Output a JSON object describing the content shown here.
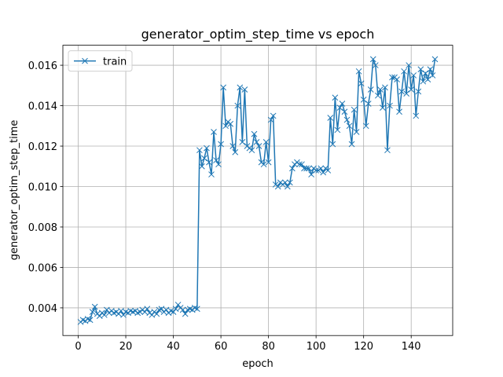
{
  "chart_data": {
    "type": "line",
    "title": "generator_optim_step_time vs epoch",
    "xlabel": "epoch",
    "ylabel": "generator_optim_step_time",
    "x": [
      1,
      2,
      3,
      4,
      5,
      6,
      7,
      8,
      9,
      10,
      11,
      12,
      13,
      14,
      15,
      16,
      17,
      18,
      19,
      20,
      21,
      22,
      23,
      24,
      25,
      26,
      27,
      28,
      29,
      30,
      31,
      32,
      33,
      34,
      35,
      36,
      37,
      38,
      39,
      40,
      41,
      42,
      43,
      44,
      45,
      46,
      47,
      48,
      49,
      50,
      51,
      52,
      53,
      54,
      55,
      56,
      57,
      58,
      59,
      60,
      61,
      62,
      63,
      64,
      65,
      66,
      67,
      68,
      69,
      70,
      71,
      72,
      73,
      74,
      75,
      76,
      77,
      78,
      79,
      80,
      81,
      82,
      83,
      84,
      85,
      86,
      87,
      88,
      89,
      90,
      91,
      92,
      93,
      94,
      95,
      96,
      97,
      98,
      99,
      100,
      101,
      102,
      103,
      104,
      105,
      106,
      107,
      108,
      109,
      110,
      111,
      112,
      113,
      114,
      115,
      116,
      117,
      118,
      119,
      120,
      121,
      122,
      123,
      124,
      125,
      126,
      127,
      128,
      129,
      130,
      131,
      132,
      133,
      134,
      135,
      136,
      137,
      138,
      139,
      140,
      141,
      142,
      143,
      144,
      145,
      146,
      147,
      148,
      149,
      150
    ],
    "series": [
      {
        "name": "train",
        "color": "#1f77b4",
        "values": [
          0.0033,
          0.0034,
          0.00335,
          0.00345,
          0.0034,
          0.0038,
          0.00405,
          0.0037,
          0.0036,
          0.00375,
          0.00365,
          0.0039,
          0.00375,
          0.00385,
          0.00375,
          0.0038,
          0.0037,
          0.00385,
          0.00365,
          0.0038,
          0.00375,
          0.00385,
          0.0038,
          0.00385,
          0.00375,
          0.0038,
          0.0039,
          0.0038,
          0.00395,
          0.00375,
          0.00365,
          0.0038,
          0.0037,
          0.0039,
          0.00395,
          0.0038,
          0.0039,
          0.00375,
          0.00385,
          0.0038,
          0.00395,
          0.00415,
          0.004,
          0.0039,
          0.0037,
          0.0039,
          0.00395,
          0.0039,
          0.004,
          0.00395,
          0.0118,
          0.011,
          0.0114,
          0.0119,
          0.0112,
          0.0106,
          0.0127,
          0.0113,
          0.0111,
          0.0121,
          0.0149,
          0.013,
          0.0132,
          0.0131,
          0.012,
          0.0117,
          0.014,
          0.0149,
          0.0122,
          0.0148,
          0.012,
          0.0119,
          0.0118,
          0.0126,
          0.0122,
          0.012,
          0.0112,
          0.0111,
          0.0122,
          0.0112,
          0.0133,
          0.0135,
          0.0101,
          0.01,
          0.0102,
          0.0101,
          0.0102,
          0.01,
          0.0102,
          0.0109,
          0.0111,
          0.0112,
          0.0111,
          0.0111,
          0.0109,
          0.0109,
          0.0109,
          0.0106,
          0.0109,
          0.0108,
          0.0108,
          0.0109,
          0.0107,
          0.0109,
          0.0108,
          0.0134,
          0.0121,
          0.0144,
          0.0128,
          0.0139,
          0.0141,
          0.0137,
          0.0133,
          0.013,
          0.0121,
          0.0138,
          0.0127,
          0.0157,
          0.0151,
          0.0143,
          0.013,
          0.0141,
          0.0148,
          0.0163,
          0.016,
          0.0145,
          0.0148,
          0.0139,
          0.0149,
          0.0118,
          0.014,
          0.0154,
          0.0154,
          0.0153,
          0.0137,
          0.0147,
          0.0157,
          0.0146,
          0.016,
          0.0148,
          0.0155,
          0.0135,
          0.0147,
          0.0158,
          0.0152,
          0.0156,
          0.0153,
          0.0158,
          0.0155,
          0.0163
        ]
      }
    ],
    "xlim": [
      -6.45,
      157.45
    ],
    "ylim": [
      0.00263,
      0.01699
    ],
    "xticks": [
      0,
      20,
      40,
      60,
      80,
      100,
      120,
      140
    ],
    "yticks": [
      {
        "value": 0.004,
        "label": "0.004"
      },
      {
        "value": 0.006,
        "label": "0.006"
      },
      {
        "value": 0.008,
        "label": "0.008"
      },
      {
        "value": 0.01,
        "label": "0.010"
      },
      {
        "value": 0.012,
        "label": "0.012"
      },
      {
        "value": 0.014,
        "label": "0.014"
      },
      {
        "value": 0.016,
        "label": "0.016"
      }
    ],
    "grid": true,
    "legend": "upper left"
  }
}
